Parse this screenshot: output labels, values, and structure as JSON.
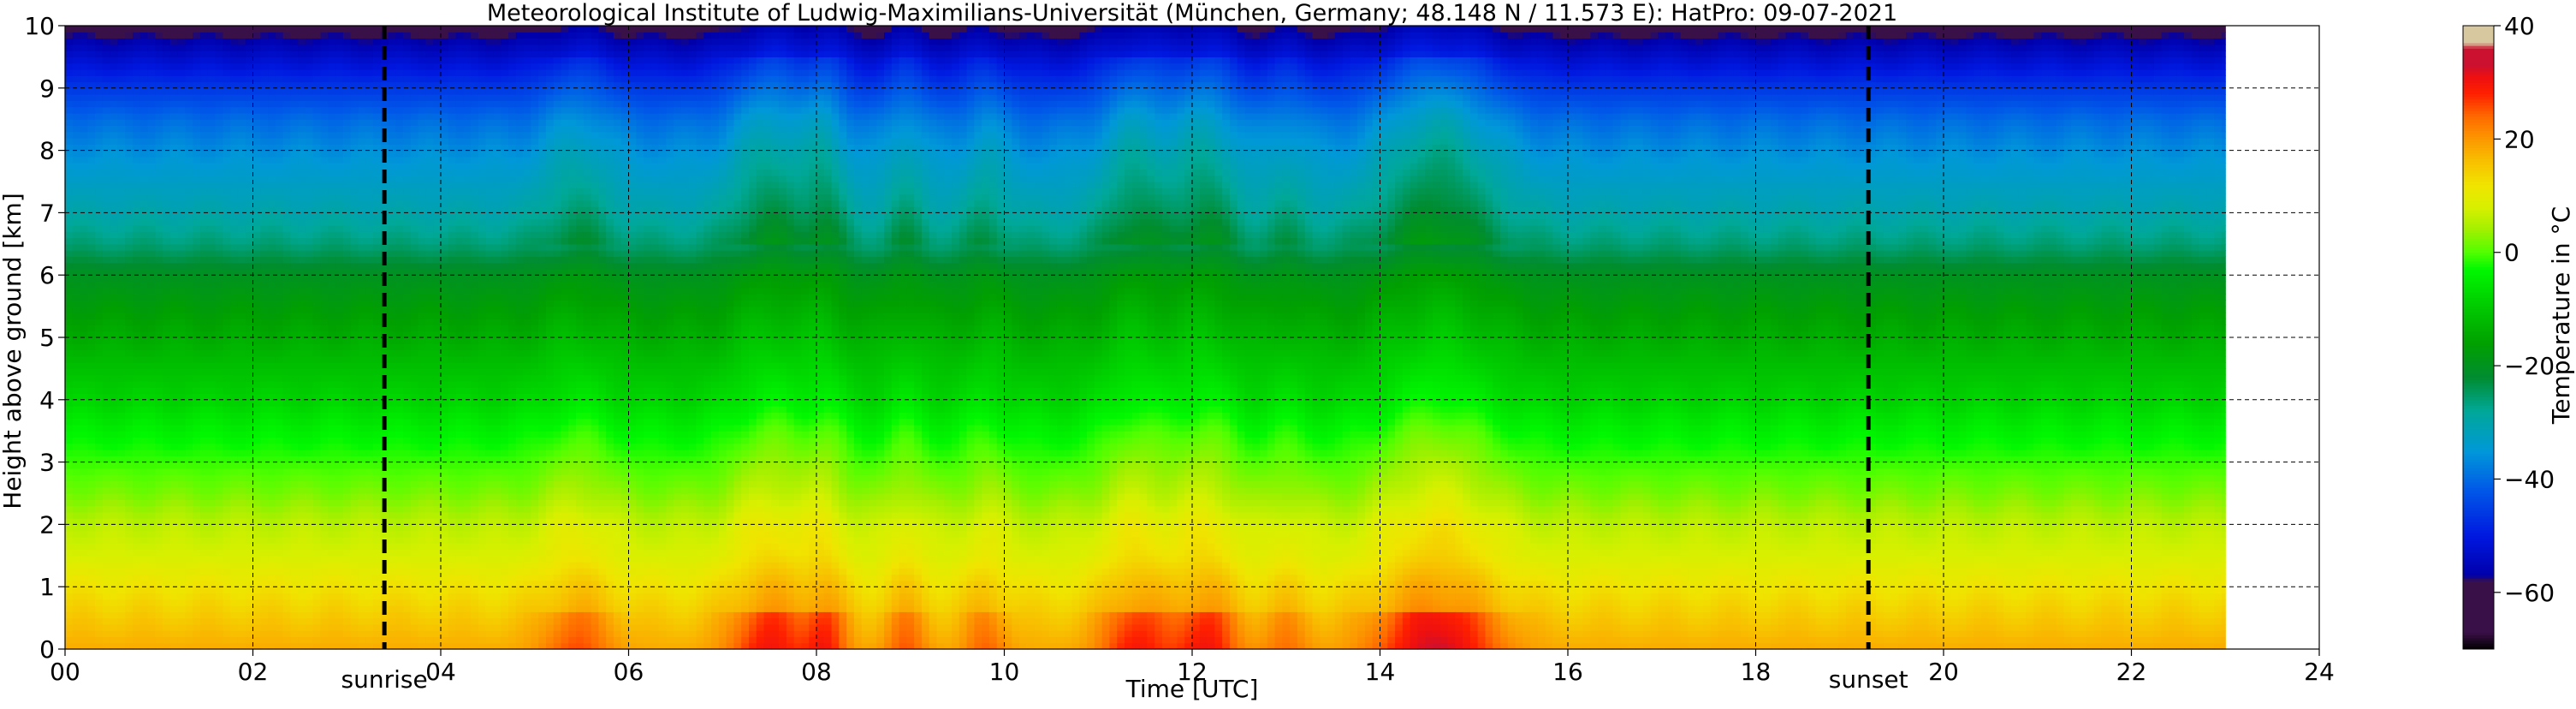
{
  "chart_data": {
    "type": "heatmap",
    "title": "Meteorological Institute of Ludwig-Maximilians-Universität (München, Germany; 48.148 N / 11.573 E):    HatPro: 09-07-2021",
    "xlabel": "Time [UTC]",
    "ylabel": "Height above ground [km]",
    "xlim": [
      0,
      24
    ],
    "ylim": [
      0,
      10
    ],
    "x_ticks": [
      "00",
      "02",
      "04",
      "06",
      "08",
      "10",
      "12",
      "14",
      "16",
      "18",
      "20",
      "22",
      "24"
    ],
    "y_ticks": [
      "0",
      "1",
      "2",
      "3",
      "4",
      "5",
      "6",
      "7",
      "8",
      "9",
      "10"
    ],
    "grid": true,
    "data_extent_hours": [
      0,
      23
    ],
    "colorbar": {
      "label": "Temperature in °C",
      "range": [
        -70,
        40
      ],
      "ticks": [
        "40",
        "20",
        "0",
        "−20",
        "−40",
        "−60"
      ],
      "tick_values": [
        40,
        20,
        0,
        -20,
        -40,
        -60
      ],
      "colors": [
        {
          "value": -70,
          "color": "#000000"
        },
        {
          "value": -67,
          "color": "#3a1048"
        },
        {
          "value": -58,
          "color": "#3a1048"
        },
        {
          "value": -57,
          "color": "#0000aa"
        },
        {
          "value": -50,
          "color": "#0018e0"
        },
        {
          "value": -42,
          "color": "#0058e8"
        },
        {
          "value": -35,
          "color": "#0098d8"
        },
        {
          "value": -28,
          "color": "#00a898"
        },
        {
          "value": -22,
          "color": "#008c30"
        },
        {
          "value": -16,
          "color": "#00a000"
        },
        {
          "value": -8,
          "color": "#00d400"
        },
        {
          "value": -3,
          "color": "#00f800"
        },
        {
          "value": 0,
          "color": "#50ff00"
        },
        {
          "value": 4,
          "color": "#a0f000"
        },
        {
          "value": 8,
          "color": "#d8f000"
        },
        {
          "value": 12,
          "color": "#f0e400"
        },
        {
          "value": 16,
          "color": "#f8c000"
        },
        {
          "value": 20,
          "color": "#fc9800"
        },
        {
          "value": 24,
          "color": "#ff6a00"
        },
        {
          "value": 28,
          "color": "#ff2000"
        },
        {
          "value": 31,
          "color": "#ee1010"
        },
        {
          "value": 33,
          "color": "#cc1030"
        },
        {
          "value": 36,
          "color": "#cc1030"
        },
        {
          "value": 37,
          "color": "#d8c8a0"
        },
        {
          "value": 40,
          "color": "#d8c8a0"
        }
      ]
    },
    "vertical_markers": [
      {
        "label": "sunrise",
        "x": 3.4
      },
      {
        "label": "sunset",
        "x": 19.2
      }
    ],
    "temperature_profile_background": {
      "height_km": [
        0,
        0.5,
        1,
        1.5,
        2,
        2.5,
        3,
        3.5,
        4,
        4.5,
        5,
        5.5,
        6,
        6.5,
        7,
        7.5,
        8,
        8.5,
        9,
        9.5,
        10
      ],
      "temp_c": [
        18,
        15,
        12,
        8,
        6,
        2,
        -1,
        -4,
        -8,
        -11,
        -14,
        -17,
        -20,
        -26,
        -30,
        -33,
        -36,
        -40,
        -46,
        -53,
        -60
      ]
    },
    "warm_events": [
      {
        "center_hours": 5.45,
        "width_hours": 0.5,
        "strength": 0.65
      },
      {
        "center_hours": 7.5,
        "width_hours": 0.55,
        "strength": 1.0
      },
      {
        "center_hours": 8.1,
        "width_hours": 0.3,
        "strength": 0.85
      },
      {
        "center_hours": 8.95,
        "width_hours": 0.3,
        "strength": 0.6
      },
      {
        "center_hours": 9.8,
        "width_hours": 0.3,
        "strength": 0.55
      },
      {
        "center_hours": 11.4,
        "width_hours": 0.5,
        "strength": 0.95
      },
      {
        "center_hours": 12.15,
        "width_hours": 0.45,
        "strength": 1.0
      },
      {
        "center_hours": 13.0,
        "width_hours": 0.35,
        "strength": 0.45
      },
      {
        "center_hours": 14.6,
        "width_hours": 0.85,
        "strength": 1.25
      }
    ]
  }
}
